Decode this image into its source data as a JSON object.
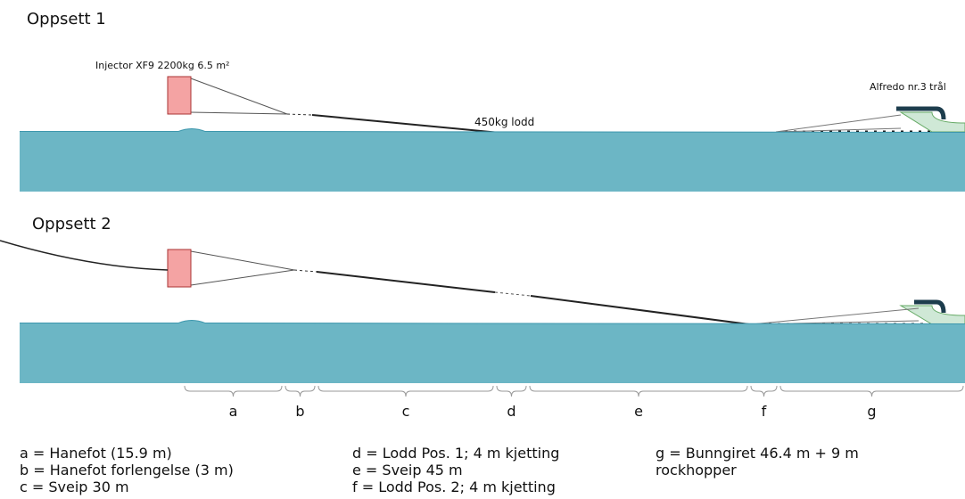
{
  "setups": [
    {
      "title": "Oppsett 1",
      "door_label": "Injector XF9 2200kg 6.5 m²",
      "weight_label": "450kg lodd",
      "trawl_label": "Alfredo nr.3 trål"
    },
    {
      "title": "Oppsett 2"
    }
  ],
  "segments": [
    "a",
    "b",
    "c",
    "d",
    "e",
    "f",
    "g"
  ],
  "legend": [
    "a = Hanefot (15.9 m)",
    "b = Hanefot forlengelse (3 m)",
    "c = Sveip 30 m",
    "d = Lodd Pos. 1; 4 m kjetting",
    "e = Sveip 45 m",
    "f = Lodd Pos. 2; 4 m kjetting",
    "g = Bunngiret 46.4 m + 9 m rockhopper"
  ]
}
